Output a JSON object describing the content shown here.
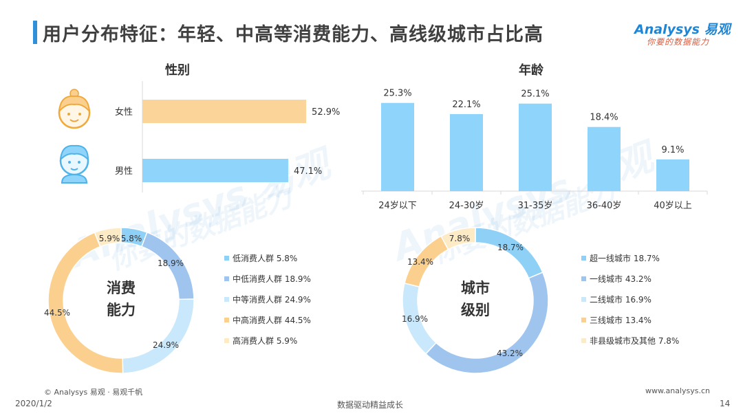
{
  "header": {
    "title": "用户分布特征：年轻、中高等消费能力、高线级城市占比高",
    "logo_text": "Analysys 易观",
    "logo_slogan": "你要的数据能力"
  },
  "watermarks": [
    {
      "text": "Analysys 易观"
    },
    {
      "text": "你要的数据能力"
    },
    {
      "text": "Analysys 易观"
    },
    {
      "text": "你要的数据能力"
    }
  ],
  "colors": {
    "female": "#fbd49a",
    "male": "#8fd5fb",
    "age": "#8fd5fb",
    "low": "#8fd0f7",
    "mid_low": "#9fc5ef",
    "mid": "#c9e8fb",
    "mid_high": "#fbd08f",
    "high": "#fdebc6",
    "tier_super": "#8fd0f7",
    "tier_1": "#9fc5ef",
    "tier_2": "#c9e8fb",
    "tier_3": "#fbd08f",
    "tier_other": "#fdebc6"
  },
  "sections": {
    "gender_title": "性别",
    "age_title": "年龄",
    "consumption_center": [
      "消费",
      "能力"
    ],
    "city_center": [
      "城市",
      "级别"
    ]
  },
  "chart_data": [
    {
      "type": "bar",
      "orientation": "horizontal",
      "title": "性别",
      "categories": [
        "女性",
        "男性"
      ],
      "values": [
        52.9,
        47.1
      ],
      "value_labels": [
        "52.9%",
        "47.1%"
      ],
      "icons": [
        "female-avatar-icon",
        "male-avatar-icon"
      ],
      "xlim": [
        0,
        100
      ]
    },
    {
      "type": "bar",
      "title": "年龄",
      "categories": [
        "24岁以下",
        "24-30岁",
        "31-35岁",
        "36-40岁",
        "40岁以上"
      ],
      "values": [
        25.3,
        22.1,
        25.1,
        18.4,
        9.1
      ],
      "value_labels": [
        "25.3%",
        "22.1%",
        "25.1%",
        "18.4%",
        "9.1%"
      ],
      "ylim": [
        0,
        28
      ]
    },
    {
      "type": "pie",
      "subtype": "donut",
      "title": "消费能力",
      "categories": [
        "低消费人群",
        "中低消费人群",
        "中等消费人群",
        "中高消费人群",
        "高消费人群"
      ],
      "values": [
        5.8,
        18.9,
        24.9,
        44.5,
        5.9
      ],
      "value_labels": [
        "5.8%",
        "18.9%",
        "24.9%",
        "44.5%",
        "5.9%"
      ],
      "legend": [
        "低消费人群 5.8%",
        "中低消费人群 18.9%",
        "中等消费人群 24.9%",
        "中高消费人群 44.5%",
        "高消费人群 5.9%"
      ],
      "legend_position": "right"
    },
    {
      "type": "pie",
      "subtype": "donut",
      "title": "城市级别",
      "categories": [
        "超一线城市",
        "一线城市",
        "二线城市",
        "三线城市",
        "非县级城市及其他"
      ],
      "values": [
        18.7,
        43.2,
        16.9,
        13.4,
        7.8
      ],
      "value_labels": [
        "18.7%",
        "43.2%",
        "16.9%",
        "13.4%",
        "7.8%"
      ],
      "legend": [
        "超一线城市 18.7%",
        "一线城市 43.2%",
        "二线城市 16.9%",
        "三线城市 13.4%",
        "非县级城市及其他 7.8%"
      ],
      "legend_position": "right"
    }
  ],
  "footer": {
    "copyright": "© Analysys 易观 · 易观千帆",
    "date": "2020/1/2",
    "slogan": "数据驱动精益成长",
    "website": "www.analysys.cn",
    "page": "14"
  }
}
